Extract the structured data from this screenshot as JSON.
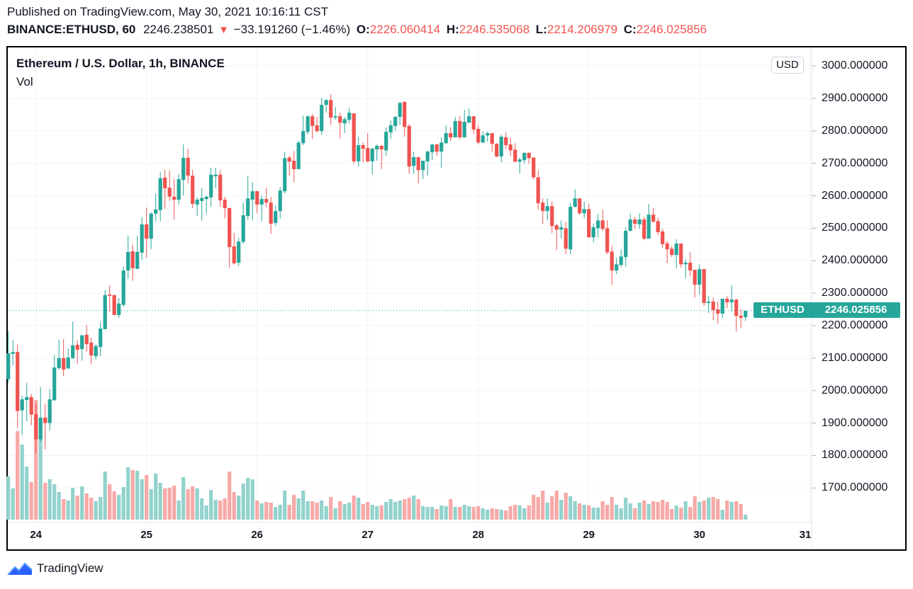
{
  "header": {
    "published": "Published on TradingView.com, May 30, 2021 10:16:11 CST",
    "symbol": "BINANCE:ETHUSD, 60",
    "price": "2246.238501",
    "change": "−33.191260 (−1.46%)",
    "open_label": "O:",
    "open": "2226.060414",
    "high_label": "H:",
    "high": "2246.535068",
    "low_label": "L:",
    "low": "2214.206979",
    "close_label": "C:",
    "close": "2246.025856"
  },
  "legend": {
    "title": "Ethereum / U.S. Dollar, 1h, BINANCE",
    "volume": "Vol"
  },
  "currency_button": "USD",
  "last_price": {
    "name": "ETHUSD",
    "value": "2246.025856"
  },
  "footer": {
    "brand": "TradingView"
  },
  "colors": {
    "up": "#26a69a",
    "down": "#ef5350",
    "vol_up": "#92d2cc",
    "vol_down": "#f7a9a7",
    "grid": "#f0f3fa"
  },
  "chart_data": {
    "type": "candlestick",
    "title": "Ethereum / U.S. Dollar, 1h, BINANCE",
    "interval": "1h",
    "price_ticks": [
      {
        "value": 1700,
        "label": "1700.000000"
      },
      {
        "value": 1800,
        "label": "1800.000000"
      },
      {
        "value": 1900,
        "label": "1900.000000"
      },
      {
        "value": 2000,
        "label": "2000.000000"
      },
      {
        "value": 2100,
        "label": "2100.000000"
      },
      {
        "value": 2200,
        "label": "2200.000000"
      },
      {
        "value": 2300,
        "label": "2300.000000"
      },
      {
        "value": 2400,
        "label": "2400.000000"
      },
      {
        "value": 2500,
        "label": "2500.000000"
      },
      {
        "value": 2600,
        "label": "2600.000000"
      },
      {
        "value": 2700,
        "label": "2700.000000"
      },
      {
        "value": 2800,
        "label": "2800.000000"
      },
      {
        "value": 2900,
        "label": "2900.000000"
      },
      {
        "value": 3000,
        "label": "3000.000000"
      }
    ],
    "time_ticks": [
      {
        "label": "24",
        "candle_index": 6
      },
      {
        "label": "25",
        "candle_index": 30
      },
      {
        "label": "26",
        "candle_index": 54
      },
      {
        "label": "27",
        "candle_index": 78
      },
      {
        "label": "28",
        "candle_index": 102
      },
      {
        "label": "29",
        "candle_index": 126
      },
      {
        "label": "30",
        "candle_index": 150
      },
      {
        "label": "31",
        "candle_index": 174
      }
    ],
    "ohlc_fields": [
      "open",
      "high",
      "low",
      "close"
    ],
    "ohlc": [
      [
        2035,
        2184,
        2024,
        2115
      ],
      [
        2113,
        2156,
        2078,
        2119
      ],
      [
        2119,
        2143,
        1885,
        1937
      ],
      [
        1939,
        1984,
        1863,
        1973
      ],
      [
        1971,
        2023,
        1906,
        1980
      ],
      [
        1980,
        1989,
        1893,
        1926
      ],
      [
        1927,
        1960,
        1808,
        1850
      ],
      [
        1850,
        2011,
        1841,
        1917
      ],
      [
        1917,
        1958,
        1819,
        1900
      ],
      [
        1900,
        2004,
        1877,
        1973
      ],
      [
        1970,
        2111,
        1970,
        2071
      ],
      [
        2069,
        2156,
        2065,
        2100
      ],
      [
        2100,
        2159,
        2044,
        2065
      ],
      [
        2068,
        2130,
        2068,
        2102
      ],
      [
        2100,
        2213,
        2098,
        2139
      ],
      [
        2141,
        2154,
        2083,
        2126
      ],
      [
        2128,
        2172,
        2092,
        2170
      ],
      [
        2172,
        2202,
        2120,
        2143
      ],
      [
        2148,
        2163,
        2081,
        2108
      ],
      [
        2106,
        2143,
        2096,
        2137
      ],
      [
        2134,
        2211,
        2106,
        2191
      ],
      [
        2189,
        2309,
        2189,
        2294
      ],
      [
        2296,
        2324,
        2244,
        2292
      ],
      [
        2294,
        2296,
        2233,
        2233
      ],
      [
        2233,
        2285,
        2224,
        2268
      ],
      [
        2264,
        2383,
        2258,
        2370
      ],
      [
        2370,
        2477,
        2344,
        2427
      ],
      [
        2429,
        2449,
        2338,
        2377
      ],
      [
        2375,
        2477,
        2375,
        2427
      ],
      [
        2425,
        2534,
        2403,
        2512
      ],
      [
        2512,
        2564,
        2409,
        2468
      ],
      [
        2468,
        2549,
        2436,
        2545
      ],
      [
        2545,
        2606,
        2521,
        2558
      ],
      [
        2556,
        2673,
        2521,
        2654
      ],
      [
        2656,
        2680,
        2560,
        2623
      ],
      [
        2625,
        2678,
        2584,
        2597
      ],
      [
        2597,
        2651,
        2527,
        2588
      ],
      [
        2588,
        2667,
        2573,
        2651
      ],
      [
        2649,
        2758,
        2601,
        2717
      ],
      [
        2717,
        2745,
        2638,
        2662
      ],
      [
        2662,
        2680,
        2562,
        2575
      ],
      [
        2573,
        2595,
        2538,
        2588
      ],
      [
        2584,
        2623,
        2523,
        2593
      ],
      [
        2590,
        2601,
        2545,
        2597
      ],
      [
        2595,
        2686,
        2566,
        2665
      ],
      [
        2660,
        2686,
        2623,
        2665
      ],
      [
        2665,
        2680,
        2566,
        2586
      ],
      [
        2588,
        2597,
        2531,
        2562
      ],
      [
        2562,
        2564,
        2379,
        2442
      ],
      [
        2444,
        2486,
        2388,
        2392
      ],
      [
        2394,
        2471,
        2383,
        2459
      ],
      [
        2458,
        2579,
        2453,
        2540
      ],
      [
        2538,
        2662,
        2527,
        2592
      ],
      [
        2588,
        2642,
        2525,
        2614
      ],
      [
        2614,
        2616,
        2546,
        2573
      ],
      [
        2573,
        2601,
        2522,
        2590
      ],
      [
        2590,
        2625,
        2564,
        2579
      ],
      [
        2579,
        2597,
        2483,
        2514
      ],
      [
        2516,
        2570,
        2507,
        2553
      ],
      [
        2553,
        2627,
        2529,
        2616
      ],
      [
        2614,
        2736,
        2607,
        2716
      ],
      [
        2718,
        2723,
        2662,
        2705
      ],
      [
        2708,
        2738,
        2642,
        2682
      ],
      [
        2682,
        2769,
        2682,
        2764
      ],
      [
        2762,
        2847,
        2756,
        2799
      ],
      [
        2797,
        2847,
        2788,
        2845
      ],
      [
        2845,
        2852,
        2775,
        2815
      ],
      [
        2817,
        2843,
        2795,
        2799
      ],
      [
        2799,
        2902,
        2788,
        2880
      ],
      [
        2880,
        2897,
        2856,
        2895
      ],
      [
        2895,
        2913,
        2819,
        2841
      ],
      [
        2841,
        2873,
        2834,
        2845
      ],
      [
        2845,
        2856,
        2777,
        2825
      ],
      [
        2823,
        2843,
        2793,
        2836
      ],
      [
        2834,
        2869,
        2823,
        2856
      ],
      [
        2854,
        2854,
        2699,
        2706
      ],
      [
        2706,
        2782,
        2690,
        2756
      ],
      [
        2756,
        2764,
        2703,
        2745
      ],
      [
        2747,
        2793,
        2703,
        2706
      ],
      [
        2706,
        2749,
        2666,
        2745
      ],
      [
        2743,
        2758,
        2708,
        2754
      ],
      [
        2754,
        2756,
        2682,
        2743
      ],
      [
        2740,
        2810,
        2723,
        2797
      ],
      [
        2795,
        2832,
        2775,
        2817
      ],
      [
        2815,
        2845,
        2801,
        2843
      ],
      [
        2843,
        2889,
        2819,
        2886
      ],
      [
        2889,
        2891,
        2782,
        2812
      ],
      [
        2815,
        2821,
        2668,
        2690
      ],
      [
        2692,
        2736,
        2668,
        2719
      ],
      [
        2719,
        2719,
        2638,
        2679
      ],
      [
        2679,
        2708,
        2651,
        2708
      ],
      [
        2706,
        2740,
        2662,
        2736
      ],
      [
        2734,
        2760,
        2710,
        2758
      ],
      [
        2758,
        2760,
        2723,
        2736
      ],
      [
        2736,
        2780,
        2686,
        2764
      ],
      [
        2762,
        2817,
        2760,
        2793
      ],
      [
        2793,
        2812,
        2769,
        2780
      ],
      [
        2780,
        2843,
        2780,
        2830
      ],
      [
        2830,
        2845,
        2775,
        2780
      ],
      [
        2780,
        2865,
        2780,
        2828
      ],
      [
        2825,
        2869,
        2825,
        2845
      ],
      [
        2845,
        2845,
        2791,
        2804
      ],
      [
        2806,
        2817,
        2758,
        2764
      ],
      [
        2764,
        2799,
        2762,
        2786
      ],
      [
        2786,
        2797,
        2767,
        2793
      ],
      [
        2793,
        2793,
        2736,
        2760
      ],
      [
        2760,
        2762,
        2719,
        2721
      ],
      [
        2721,
        2788,
        2703,
        2782
      ],
      [
        2780,
        2795,
        2745,
        2756
      ],
      [
        2758,
        2779,
        2723,
        2740
      ],
      [
        2742,
        2762,
        2703,
        2705
      ],
      [
        2705,
        2718,
        2668,
        2712
      ],
      [
        2710,
        2734,
        2699,
        2732
      ],
      [
        2732,
        2734,
        2699,
        2716
      ],
      [
        2718,
        2718,
        2651,
        2657
      ],
      [
        2657,
        2679,
        2557,
        2577
      ],
      [
        2579,
        2592,
        2514,
        2553
      ],
      [
        2553,
        2592,
        2524,
        2568
      ],
      [
        2568,
        2583,
        2485,
        2507
      ],
      [
        2509,
        2513,
        2433,
        2496
      ],
      [
        2496,
        2524,
        2468,
        2503
      ],
      [
        2500,
        2520,
        2420,
        2437
      ],
      [
        2435,
        2577,
        2420,
        2566
      ],
      [
        2566,
        2620,
        2564,
        2592
      ],
      [
        2592,
        2592,
        2542,
        2546
      ],
      [
        2546,
        2583,
        2531,
        2559
      ],
      [
        2559,
        2575,
        2472,
        2472
      ],
      [
        2472,
        2514,
        2457,
        2503
      ],
      [
        2500,
        2544,
        2472,
        2524
      ],
      [
        2524,
        2557,
        2492,
        2498
      ],
      [
        2500,
        2524,
        2420,
        2426
      ],
      [
        2428,
        2446,
        2326,
        2370
      ],
      [
        2370,
        2409,
        2359,
        2389
      ],
      [
        2387,
        2435,
        2380,
        2413
      ],
      [
        2411,
        2503,
        2383,
        2492
      ],
      [
        2492,
        2544,
        2490,
        2527
      ],
      [
        2527,
        2535,
        2498,
        2514
      ],
      [
        2512,
        2546,
        2498,
        2527
      ],
      [
        2527,
        2535,
        2463,
        2468
      ],
      [
        2468,
        2575,
        2468,
        2542
      ],
      [
        2542,
        2562,
        2518,
        2520
      ],
      [
        2522,
        2533,
        2479,
        2488
      ],
      [
        2490,
        2498,
        2440,
        2451
      ],
      [
        2453,
        2461,
        2392,
        2435
      ],
      [
        2437,
        2446,
        2411,
        2418
      ],
      [
        2418,
        2466,
        2376,
        2453
      ],
      [
        2453,
        2453,
        2379,
        2389
      ],
      [
        2389,
        2405,
        2346,
        2394
      ],
      [
        2394,
        2426,
        2352,
        2370
      ],
      [
        2372,
        2372,
        2287,
        2326
      ],
      [
        2326,
        2389,
        2296,
        2374
      ],
      [
        2374,
        2374,
        2261,
        2270
      ],
      [
        2270,
        2291,
        2239,
        2274
      ],
      [
        2274,
        2287,
        2217,
        2248
      ],
      [
        2250,
        2274,
        2206,
        2237
      ],
      [
        2237,
        2283,
        2224,
        2283
      ],
      [
        2283,
        2291,
        2254,
        2272
      ],
      [
        2272,
        2324,
        2243,
        2280
      ],
      [
        2280,
        2283,
        2182,
        2230
      ],
      [
        2230,
        2250,
        2193,
        2224
      ],
      [
        2226.06,
        2246.54,
        2214.21,
        2246.03
      ]
    ],
    "volume_relative": [
      61,
      44,
      125,
      106,
      75,
      53,
      169,
      137,
      52,
      57,
      50,
      39,
      29,
      27,
      45,
      34,
      47,
      37,
      31,
      26,
      32,
      68,
      50,
      40,
      35,
      46,
      74,
      70,
      69,
      57,
      63,
      43,
      65,
      52,
      44,
      45,
      48,
      27,
      60,
      43,
      47,
      44,
      30,
      20,
      42,
      28,
      27,
      30,
      68,
      39,
      34,
      51,
      59,
      57,
      27,
      23,
      25,
      24,
      18,
      21,
      41,
      21,
      35,
      30,
      41,
      26,
      26,
      24,
      27,
      19,
      32,
      16,
      26,
      22,
      24,
      34,
      31,
      22,
      25,
      21,
      19,
      20,
      25,
      29,
      25,
      27,
      29,
      31,
      34,
      29,
      19,
      18,
      18,
      15,
      20,
      19,
      29,
      18,
      18,
      21,
      19,
      18,
      19,
      16,
      14,
      16,
      15,
      14,
      13,
      19,
      21,
      20,
      16,
      20,
      35,
      32,
      41,
      24,
      33,
      41,
      28,
      38,
      33,
      26,
      23,
      21,
      20,
      17,
      17,
      26,
      21,
      32,
      21,
      16,
      31,
      23,
      16,
      24,
      27,
      22,
      26,
      25,
      28,
      25,
      15,
      20,
      17,
      26,
      18,
      33,
      25,
      27,
      31,
      32,
      29,
      14,
      27,
      25,
      26,
      22,
      7
    ],
    "last_price": 2246.025856,
    "grid": true
  }
}
